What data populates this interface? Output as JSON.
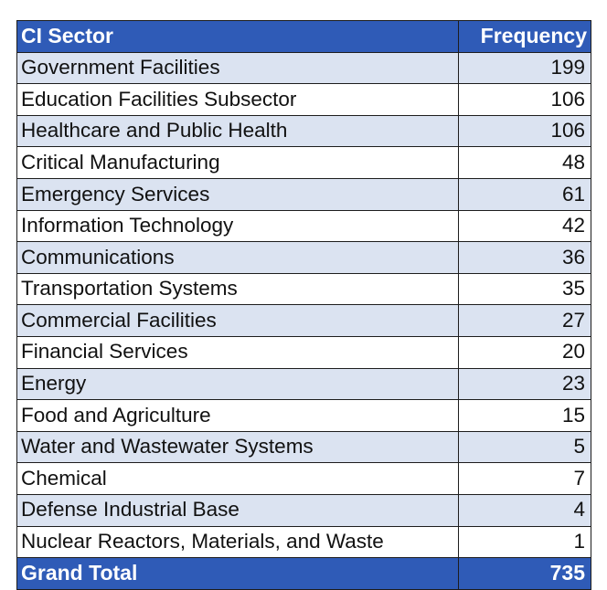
{
  "table": {
    "headers": [
      "CI Sector",
      "Frequency"
    ],
    "rows": [
      {
        "sector": "Government Facilities",
        "frequency": "199"
      },
      {
        "sector": "Education Facilities Subsector",
        "frequency": "106"
      },
      {
        "sector": "Healthcare and Public Health",
        "frequency": "106"
      },
      {
        "sector": "Critical Manufacturing",
        "frequency": "48"
      },
      {
        "sector": "Emergency Services",
        "frequency": "61"
      },
      {
        "sector": "Information Technology",
        "frequency": "42"
      },
      {
        "sector": "Communications",
        "frequency": "36"
      },
      {
        "sector": "Transportation Systems",
        "frequency": "35"
      },
      {
        "sector": "Commercial Facilities",
        "frequency": "27"
      },
      {
        "sector": "Financial Services",
        "frequency": "20"
      },
      {
        "sector": "Energy",
        "frequency": "23"
      },
      {
        "sector": "Food and Agriculture",
        "frequency": "15"
      },
      {
        "sector": "Water and Wastewater Systems",
        "frequency": "5"
      },
      {
        "sector": "Chemical",
        "frequency": "7"
      },
      {
        "sector": "Defense Industrial Base",
        "frequency": "4"
      },
      {
        "sector": "Nuclear Reactors, Materials, and Waste",
        "frequency": "1"
      }
    ],
    "total": {
      "label": "Grand Total",
      "frequency": "735"
    }
  },
  "colors": {
    "header_bg": "#2f5bb7",
    "band_bg": "#dbe3f1",
    "plain_bg": "#ffffff",
    "border": "#1d1d1d"
  }
}
